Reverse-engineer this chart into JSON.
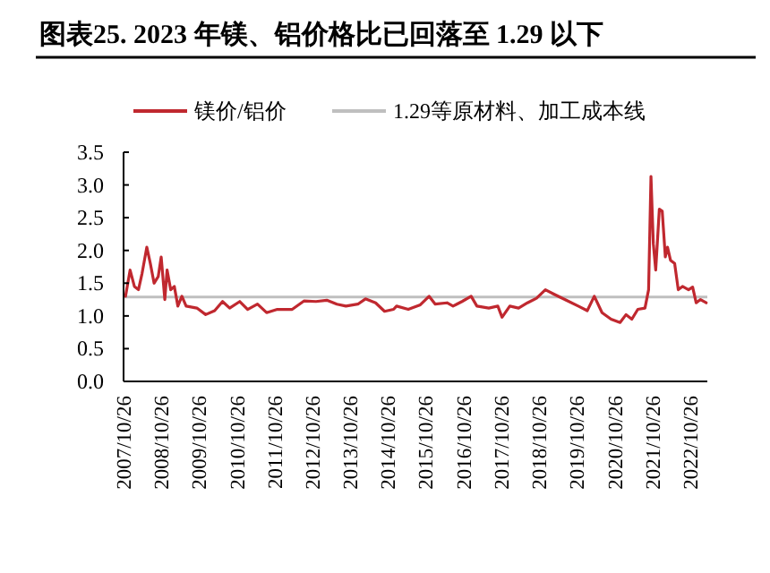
{
  "chart_data": {
    "type": "line",
    "title": "图表25. 2023 年镁、铝价格比已回落至 1.29 以下",
    "x": [
      "2007-11-14",
      "2007-12-28",
      "2008-02-08",
      "2008-03-18",
      "2008-04-22",
      "2008-06-07",
      "2008-07-11",
      "2008-08-16",
      "2008-09-25",
      "2008-10-24",
      "2008-11-28",
      "2008-12-20",
      "2009-01-24",
      "2009-02-28",
      "2009-04-03",
      "2009-05-12",
      "2009-06-22",
      "2009-10-04",
      "2009-12-28",
      "2010-03-25",
      "2010-06-09",
      "2010-08-17",
      "2010-11-23",
      "2011-02-07",
      "2011-05-13",
      "2011-08-09",
      "2011-11-21",
      "2012-04-13",
      "2012-08-07",
      "2012-11-29",
      "2013-03-13",
      "2013-06-19",
      "2013-09-14",
      "2014-01-08",
      "2014-03-22",
      "2014-06-28",
      "2014-09-23",
      "2014-12-19",
      "2015-01-17",
      "2015-05-10",
      "2015-09-04",
      "2015-11-28",
      "2016-01-26",
      "2016-05-19",
      "2016-07-16",
      "2016-10-11",
      "2017-01-07",
      "2017-03-04",
      "2017-06-27",
      "2017-09-22",
      "2017-11-02",
      "2018-01-16",
      "2018-04-11",
      "2018-07-06",
      "2018-10-01",
      "2018-12-26",
      "2019-03-22",
      "2019-07-15",
      "2019-11-09",
      "2020-02-04",
      "2020-04-12",
      "2020-06-26",
      "2020-09-21",
      "2020-12-17",
      "2021-02-13",
      "2021-04-10",
      "2021-06-07",
      "2021-08-15",
      "2021-09-19",
      "2021-10-12",
      "2021-11-04",
      "2021-11-27",
      "2022-01-01",
      "2022-01-29",
      "2022-02-28",
      "2022-03-21",
      "2022-04-19",
      "2022-05-29",
      "2022-07-03",
      "2022-08-13",
      "2022-10-10",
      "2022-11-19",
      "2022-12-23",
      "2023-02-03",
      "2023-03-30"
    ],
    "series": [
      {
        "name": "镁价/铝价",
        "color": "#c0282f",
        "values": [
          1.3,
          1.7,
          1.45,
          1.4,
          1.65,
          2.05,
          1.8,
          1.5,
          1.6,
          1.9,
          1.25,
          1.7,
          1.4,
          1.45,
          1.15,
          1.3,
          1.15,
          1.12,
          1.02,
          1.08,
          1.22,
          1.12,
          1.22,
          1.1,
          1.18,
          1.05,
          1.1,
          1.1,
          1.23,
          1.22,
          1.24,
          1.18,
          1.15,
          1.18,
          1.26,
          1.2,
          1.07,
          1.1,
          1.15,
          1.1,
          1.17,
          1.3,
          1.18,
          1.2,
          1.15,
          1.22,
          1.3,
          1.15,
          1.12,
          1.15,
          0.98,
          1.15,
          1.12,
          1.2,
          1.27,
          1.4,
          1.33,
          1.24,
          1.15,
          1.08,
          1.3,
          1.05,
          0.95,
          0.9,
          1.02,
          0.95,
          1.1,
          1.12,
          1.4,
          3.13,
          2.1,
          1.7,
          2.63,
          2.6,
          1.9,
          2.05,
          1.85,
          1.8,
          1.4,
          1.45,
          1.4,
          1.44,
          1.2,
          1.25,
          1.2
        ]
      }
    ],
    "ref_lines": [
      {
        "axis": "y",
        "value": 1.29,
        "label": "1.29等原材料、加工成本线",
        "color": "#bfbfbf"
      }
    ],
    "xlim": [
      "2007-10-26",
      "2023-04-10"
    ],
    "xticks": [
      {
        "value": "2007-10-26",
        "label": "2007/10/26"
      },
      {
        "value": "2008-10-26",
        "label": "2008/10/26"
      },
      {
        "value": "2009-10-26",
        "label": "2009/10/26"
      },
      {
        "value": "2010-10-26",
        "label": "2010/10/26"
      },
      {
        "value": "2011-10-26",
        "label": "2011/10/26"
      },
      {
        "value": "2012-10-26",
        "label": "2012/10/26"
      },
      {
        "value": "2013-10-26",
        "label": "2013/10/26"
      },
      {
        "value": "2014-10-26",
        "label": "2014/10/26"
      },
      {
        "value": "2015-10-26",
        "label": "2015/10/26"
      },
      {
        "value": "2016-10-26",
        "label": "2016/10/26"
      },
      {
        "value": "2017-10-26",
        "label": "2017/10/26"
      },
      {
        "value": "2018-10-26",
        "label": "2018/10/26"
      },
      {
        "value": "2019-10-26",
        "label": "2019/10/26"
      },
      {
        "value": "2020-10-26",
        "label": "2020/10/26"
      },
      {
        "value": "2021-10-26",
        "label": "2021/10/26"
      },
      {
        "value": "2022-10-26",
        "label": "2022/10/26"
      }
    ],
    "ylim": [
      0,
      3.5
    ],
    "yticks": [
      {
        "value": 0,
        "label": "0.0"
      },
      {
        "value": 0.5,
        "label": "0.5"
      },
      {
        "value": 1,
        "label": "1.0"
      },
      {
        "value": 1.5,
        "label": "1.5"
      },
      {
        "value": 2,
        "label": "2.0"
      },
      {
        "value": 2.5,
        "label": "2.5"
      },
      {
        "value": 3,
        "label": "3.0"
      },
      {
        "value": 3.5,
        "label": "3.5"
      }
    ],
    "grid": false,
    "legend": "top",
    "line_style": "solid"
  }
}
